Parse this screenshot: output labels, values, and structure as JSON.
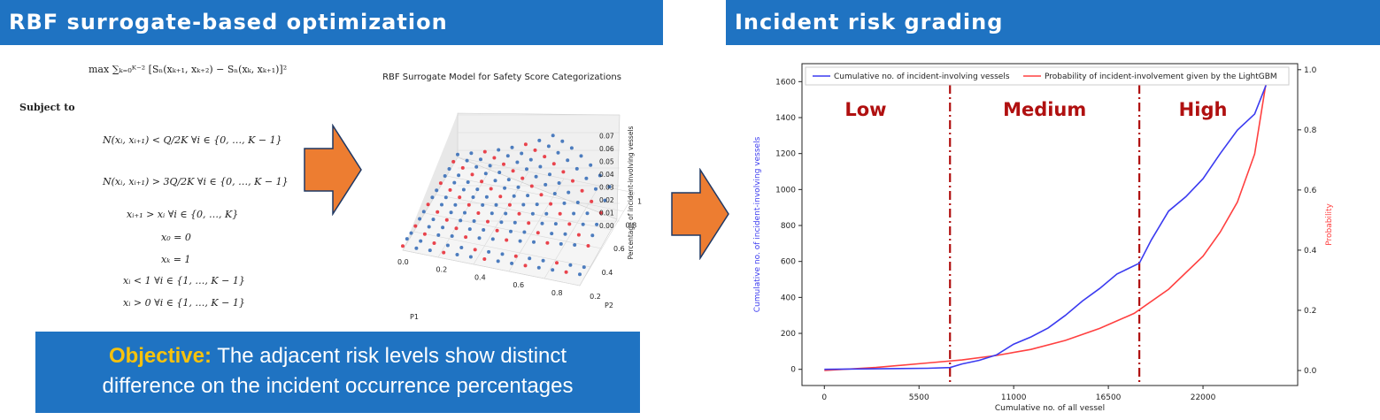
{
  "left_panel": {
    "title": "RBF surrogate-based optimization",
    "objective_fn": "max ∑ₖ₌₀ᴷ⁻² [Sₙ(xₖ₊₁, xₖ₊₂) − Sₙ(xₖ, xₖ₊₁)]²",
    "subject_to": "Subject to",
    "constraints": [
      "N(xᵢ, xᵢ₊₁) < Q/2K  ∀i ∈ {0, …, K − 1}",
      "N(xᵢ, xᵢ₊₁) > 3Q/2K  ∀i ∈ {0, …, K − 1}",
      "xᵢ₊₁ > xᵢ  ∀i ∈ {0, …, K}",
      "x₀ = 0",
      "xₖ = 1",
      "xᵢ < 1  ∀i ∈ {1, …, K − 1}",
      "xᵢ > 0  ∀i ∈ {1, …, K − 1}"
    ],
    "objective_label": "Objective:",
    "objective_text_1": "The adjacent risk levels show distinct",
    "objective_text_2": "difference on the incident occurrence percentages"
  },
  "surface_plot": {
    "title": "RBF Surrogate Model for Safety Score Categorizations",
    "xlabel": "P1",
    "ylabel": "P2",
    "zlabel": "Percentage of incident-involving vessels",
    "x_ticks": [
      "0.0",
      "0.2",
      "0.4",
      "0.6",
      "0.8"
    ],
    "y_ticks": [
      "0.2",
      "0.4",
      "0.6",
      "0.8",
      "1.0"
    ],
    "z_ticks": [
      "0.00",
      "0.01",
      "0.02",
      "0.03",
      "0.04",
      "0.05",
      "0.06",
      "0.07"
    ]
  },
  "right_panel": {
    "title": "Incident risk grading",
    "levels": [
      "Low",
      "Medium",
      "High"
    ],
    "colors": {
      "level_text": "#b01010",
      "cumulative": "#3b3bf0",
      "probability": "#ff4040",
      "divider": "#b01010"
    }
  },
  "chart_data": {
    "type": "line",
    "xlabel": "Cumulative no. of all vessel",
    "ylabel": "Cumulative no. of incident-involving vessels",
    "y2label": "Probability",
    "x_ticks": [
      0,
      5500,
      11000,
      16500,
      22000
    ],
    "y_ticks": [
      0,
      200,
      400,
      600,
      800,
      1000,
      1200,
      1400,
      1600
    ],
    "y2_ticks": [
      "0.0",
      "0.2",
      "0.4",
      "0.6",
      "0.8",
      "1.0"
    ],
    "xlim": [
      -1300,
      27500
    ],
    "ylim": [
      -90,
      1700
    ],
    "y2lim": [
      -0.05,
      1.02
    ],
    "legend_position": "top",
    "thresholds": [
      7300,
      18300
    ],
    "series": [
      {
        "name": "Cumulative no. of incident-involving vessels",
        "axis": "left",
        "x": [
          0,
          3000,
          6000,
          7300,
          8000,
          9000,
          10000,
          11000,
          12000,
          13000,
          14000,
          15000,
          16000,
          17000,
          18300,
          19000,
          20000,
          21000,
          22000,
          23000,
          24000,
          25000,
          25700
        ],
        "y": [
          0,
          3,
          6,
          10,
          30,
          50,
          80,
          140,
          180,
          230,
          300,
          380,
          450,
          530,
          590,
          720,
          880,
          960,
          1060,
          1200,
          1330,
          1420,
          1590
        ]
      },
      {
        "name": "Probability of incident-involvement given by the LightGBM",
        "axis": "right",
        "x": [
          0,
          3000,
          6000,
          8000,
          10000,
          12000,
          14000,
          16000,
          18000,
          20000,
          22000,
          23000,
          24000,
          25000,
          25700
        ],
        "y": [
          0.0,
          0.01,
          0.025,
          0.035,
          0.05,
          0.07,
          0.1,
          0.14,
          0.19,
          0.27,
          0.38,
          0.46,
          0.56,
          0.72,
          0.97
        ]
      }
    ]
  }
}
